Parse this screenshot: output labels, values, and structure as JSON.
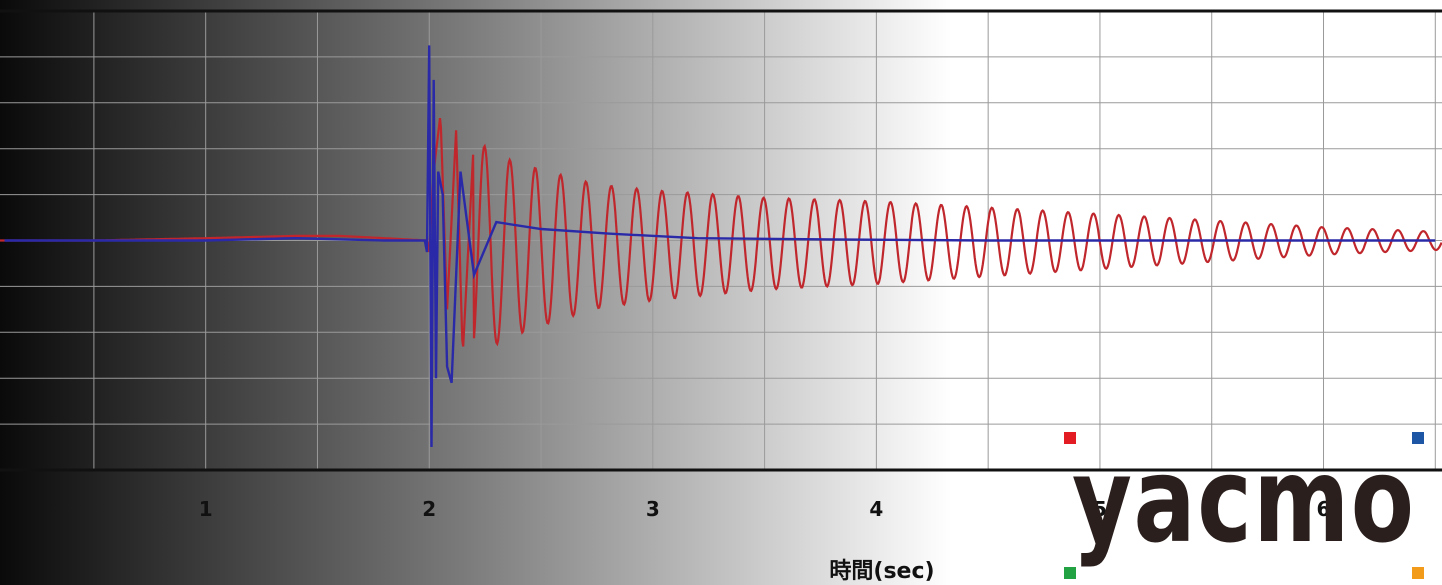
{
  "chart_data": {
    "type": "line",
    "xlabel": "時間(sec)",
    "ylabel": "",
    "xlim": [
      0.08,
      6.53
    ],
    "ylim": [
      -1.0,
      1.0
    ],
    "x_ticks": [
      1,
      2,
      3,
      4,
      5,
      6
    ],
    "x_tick_labels": [
      "1",
      "2",
      "3",
      "4",
      "5",
      "6"
    ],
    "grid": true,
    "legend": "none",
    "series": [
      {
        "color": "#c0272d",
        "x": [
          0.1,
          0.5,
          1.0,
          1.4,
          1.6,
          1.8,
          1.99,
          2.0,
          2.02,
          2.05,
          2.08,
          2.12,
          2.15,
          2.2,
          2.26,
          2.32,
          2.38,
          2.5,
          2.75,
          3.0,
          3.25,
          3.5,
          3.75,
          4.0,
          4.5,
          5.0,
          5.5,
          6.0,
          6.5
        ],
        "values": [
          0.0,
          0.0,
          0.01,
          0.02,
          0.02,
          0.01,
          0.0,
          -0.05,
          0.3,
          0.55,
          -0.3,
          0.48,
          -0.5,
          0.45,
          -0.45,
          0.4,
          -0.38,
          0.34,
          0.27,
          0.24,
          0.22,
          0.2,
          0.19,
          0.18,
          0.15,
          0.12,
          0.09,
          0.06,
          0.04
        ],
        "oscillation_period_sec": 0.1135
      },
      {
        "color": "#2a2aa8",
        "x": [
          0.1,
          0.5,
          1.0,
          1.4,
          1.8,
          1.98,
          1.99,
          2.0,
          2.01,
          2.02,
          2.03,
          2.04,
          2.06,
          2.08,
          2.1,
          2.14,
          2.2,
          2.3,
          2.5,
          2.8,
          3.2,
          3.8,
          4.5,
          6.5
        ],
        "values": [
          0.0,
          0.0,
          0.0,
          0.01,
          0.0,
          0.0,
          -0.05,
          0.85,
          -0.9,
          0.7,
          -0.6,
          0.3,
          0.2,
          -0.55,
          -0.62,
          0.3,
          -0.15,
          0.08,
          0.05,
          0.03,
          0.01,
          0.005,
          0.0,
          0.0
        ]
      }
    ]
  },
  "logo": {
    "text": "yacmo",
    "dot_colors": [
      "#e31b23",
      "#1e56a6",
      "#22a243",
      "#f29a1a"
    ]
  },
  "colors": {
    "gradient_start": "#0a0a0a",
    "gradient_mid": "#7a7a7a",
    "gradient_end": "#ffffff",
    "grid": "#9a9a9a",
    "frame": "#111111"
  }
}
